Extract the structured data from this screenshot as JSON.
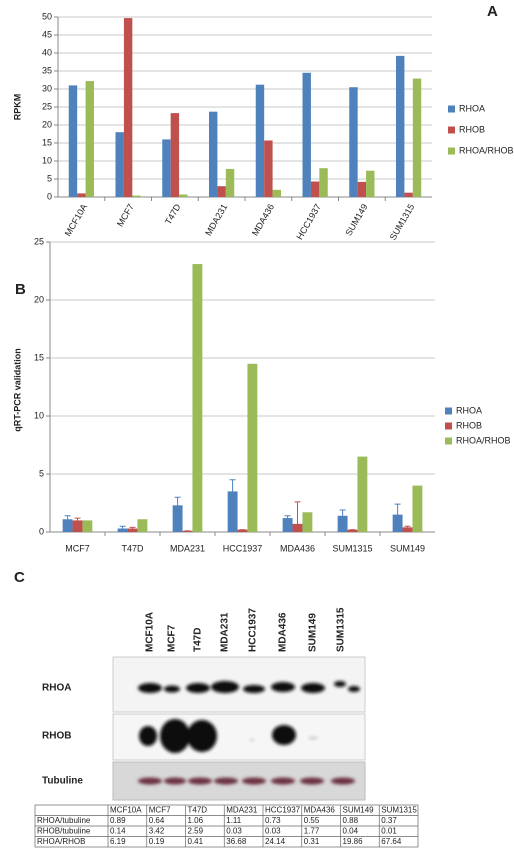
{
  "chart_data": [
    {
      "type": "bar",
      "panel_label": "A",
      "ylabel": "RPKM",
      "categories": [
        "MCF10A",
        "MCF7",
        "T47D",
        "MDA231",
        "MDA436",
        "HCC1937",
        "SUM149",
        "SUM1315"
      ],
      "series": [
        {
          "name": "RHOA",
          "color": "#4f81bd",
          "values": [
            31,
            18,
            16,
            23.7,
            31.2,
            34.5,
            30.5,
            39.2
          ]
        },
        {
          "name": "RHOB",
          "color": "#c0504d",
          "values": [
            1,
            49.7,
            23.3,
            3,
            15.7,
            4.3,
            4.2,
            1.2
          ]
        },
        {
          "name": "RHOA/RHOB",
          "color": "#9bbb59",
          "values": [
            32.2,
            0.4,
            0.7,
            7.8,
            2,
            8,
            7.3,
            32.9
          ]
        }
      ],
      "ylim": [
        0,
        50
      ],
      "yticks": [
        0,
        5,
        10,
        15,
        20,
        25,
        30,
        35,
        40,
        45,
        50
      ],
      "grid": true,
      "legend": "right"
    },
    {
      "type": "bar",
      "panel_label": "B",
      "ylabel": "qRT-PCR validation",
      "categories": [
        "MCF7",
        "T47D",
        "MDA231",
        "HCC1937",
        "MDA436",
        "SUM1315",
        "SUM149"
      ],
      "series": [
        {
          "name": "RHOA",
          "color": "#4f81bd",
          "values": [
            1.1,
            0.3,
            2.3,
            3.5,
            1.2,
            1.4,
            1.5
          ],
          "errors": [
            0.3,
            0.2,
            0.7,
            1.0,
            0.2,
            0.5,
            0.9
          ]
        },
        {
          "name": "RHOB",
          "color": "#c0504d",
          "values": [
            1.0,
            0.3,
            0.1,
            0.2,
            0.7,
            0.2,
            0.4
          ],
          "errors": [
            0.2,
            0.1,
            0,
            0,
            1.9,
            0,
            0.1
          ]
        },
        {
          "name": "RHOA/RHOB",
          "color": "#9bbb59",
          "values": [
            1.0,
            1.1,
            23.1,
            14.5,
            1.7,
            6.5,
            4.0
          ]
        }
      ],
      "ylim": [
        0,
        25
      ],
      "yticks": [
        0,
        5,
        10,
        15,
        20,
        25
      ],
      "grid": true,
      "legend": "right"
    }
  ],
  "blot": {
    "panel_label": "C",
    "lanes": [
      "MCF10A",
      "MCF7",
      "T47D",
      "MDA231",
      "HCC1937",
      "MDA436",
      "SUM149",
      "SUM1315"
    ],
    "rows": [
      "RHOA",
      "RHOB",
      "Tubuline"
    ]
  },
  "table": {
    "columns": [
      "MCF10A",
      "MCF7",
      "T47D",
      "MDA231",
      "HCC1937",
      "MDA436",
      "SUM149",
      "SUM1315"
    ],
    "rows": [
      {
        "label": "RHOA/tubuline",
        "values": [
          "0.89",
          "0.64",
          "1.06",
          "1.11",
          "0.73",
          "0.55",
          "0.88",
          "0.37"
        ]
      },
      {
        "label": "RHOB/tubuline",
        "values": [
          "0.14",
          "3.42",
          "2.59",
          "0.03",
          "0.03",
          "1.77",
          "0.04",
          "0.01"
        ]
      },
      {
        "label": "RHOA/RHOB",
        "values": [
          "6.19",
          "0.19",
          "0.41",
          "36.68",
          "24.14",
          "0.31",
          "19.86",
          "67.64"
        ]
      }
    ]
  }
}
